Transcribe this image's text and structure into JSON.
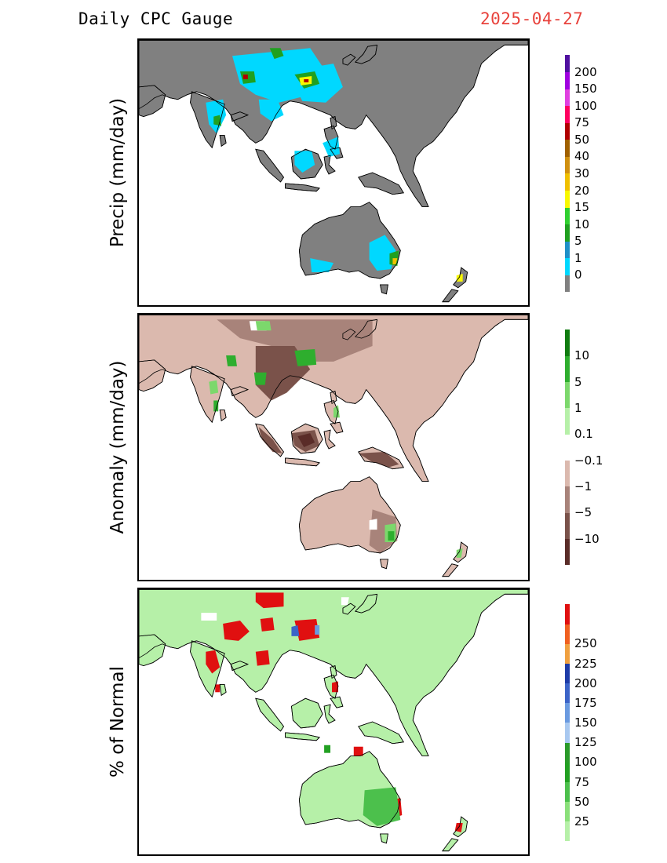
{
  "header": {
    "title": "Daily CPC Gauge",
    "date": "2025-04-27"
  },
  "panels": [
    {
      "id": "precip",
      "ylabel": "Precip (mm/day)",
      "colors": [
        "#808080",
        "#00d8ff",
        "#1e90c8",
        "#20a020",
        "#30d030",
        "#f8f800",
        "#f0c000",
        "#d09010",
        "#a06000",
        "#b00000",
        "#ff0060",
        "#e040e0",
        "#a000e0",
        "#5010a0"
      ],
      "labels": [
        "0",
        "1",
        "5",
        "10",
        "15",
        "20",
        "30",
        "40",
        "50",
        "75",
        "100",
        "150",
        "200"
      ],
      "land_color": "#808080"
    },
    {
      "id": "anomaly",
      "ylabel": "Anomaly (mm/day)",
      "colors": [
        "#5a2c28",
        "#7a524a",
        "#a8837a",
        "#dbb9ae",
        "#ffffff",
        "#b6f0a8",
        "#7cd86c",
        "#2eae2e",
        "#107c10"
      ],
      "labels": [
        "−10",
        "−5",
        "−1",
        "−0.1",
        "0.1",
        "1",
        "5",
        "10"
      ],
      "land_color": "#dbb9ae"
    },
    {
      "id": "percent",
      "ylabel": "% of Normal",
      "colors": [
        "#b6f0a8",
        "#8ae07a",
        "#4cc04c",
        "#22a022",
        "#2a9a2a",
        "#a8c8f0",
        "#6a9ae0",
        "#3c64c8",
        "#1e3ca8",
        "#f0a040",
        "#f06020",
        "#e01010"
      ],
      "labels": [
        "25",
        "50",
        "75",
        "100",
        "125",
        "150",
        "175",
        "200",
        "225",
        "250"
      ],
      "land_color": "#b6f0a8"
    }
  ]
}
